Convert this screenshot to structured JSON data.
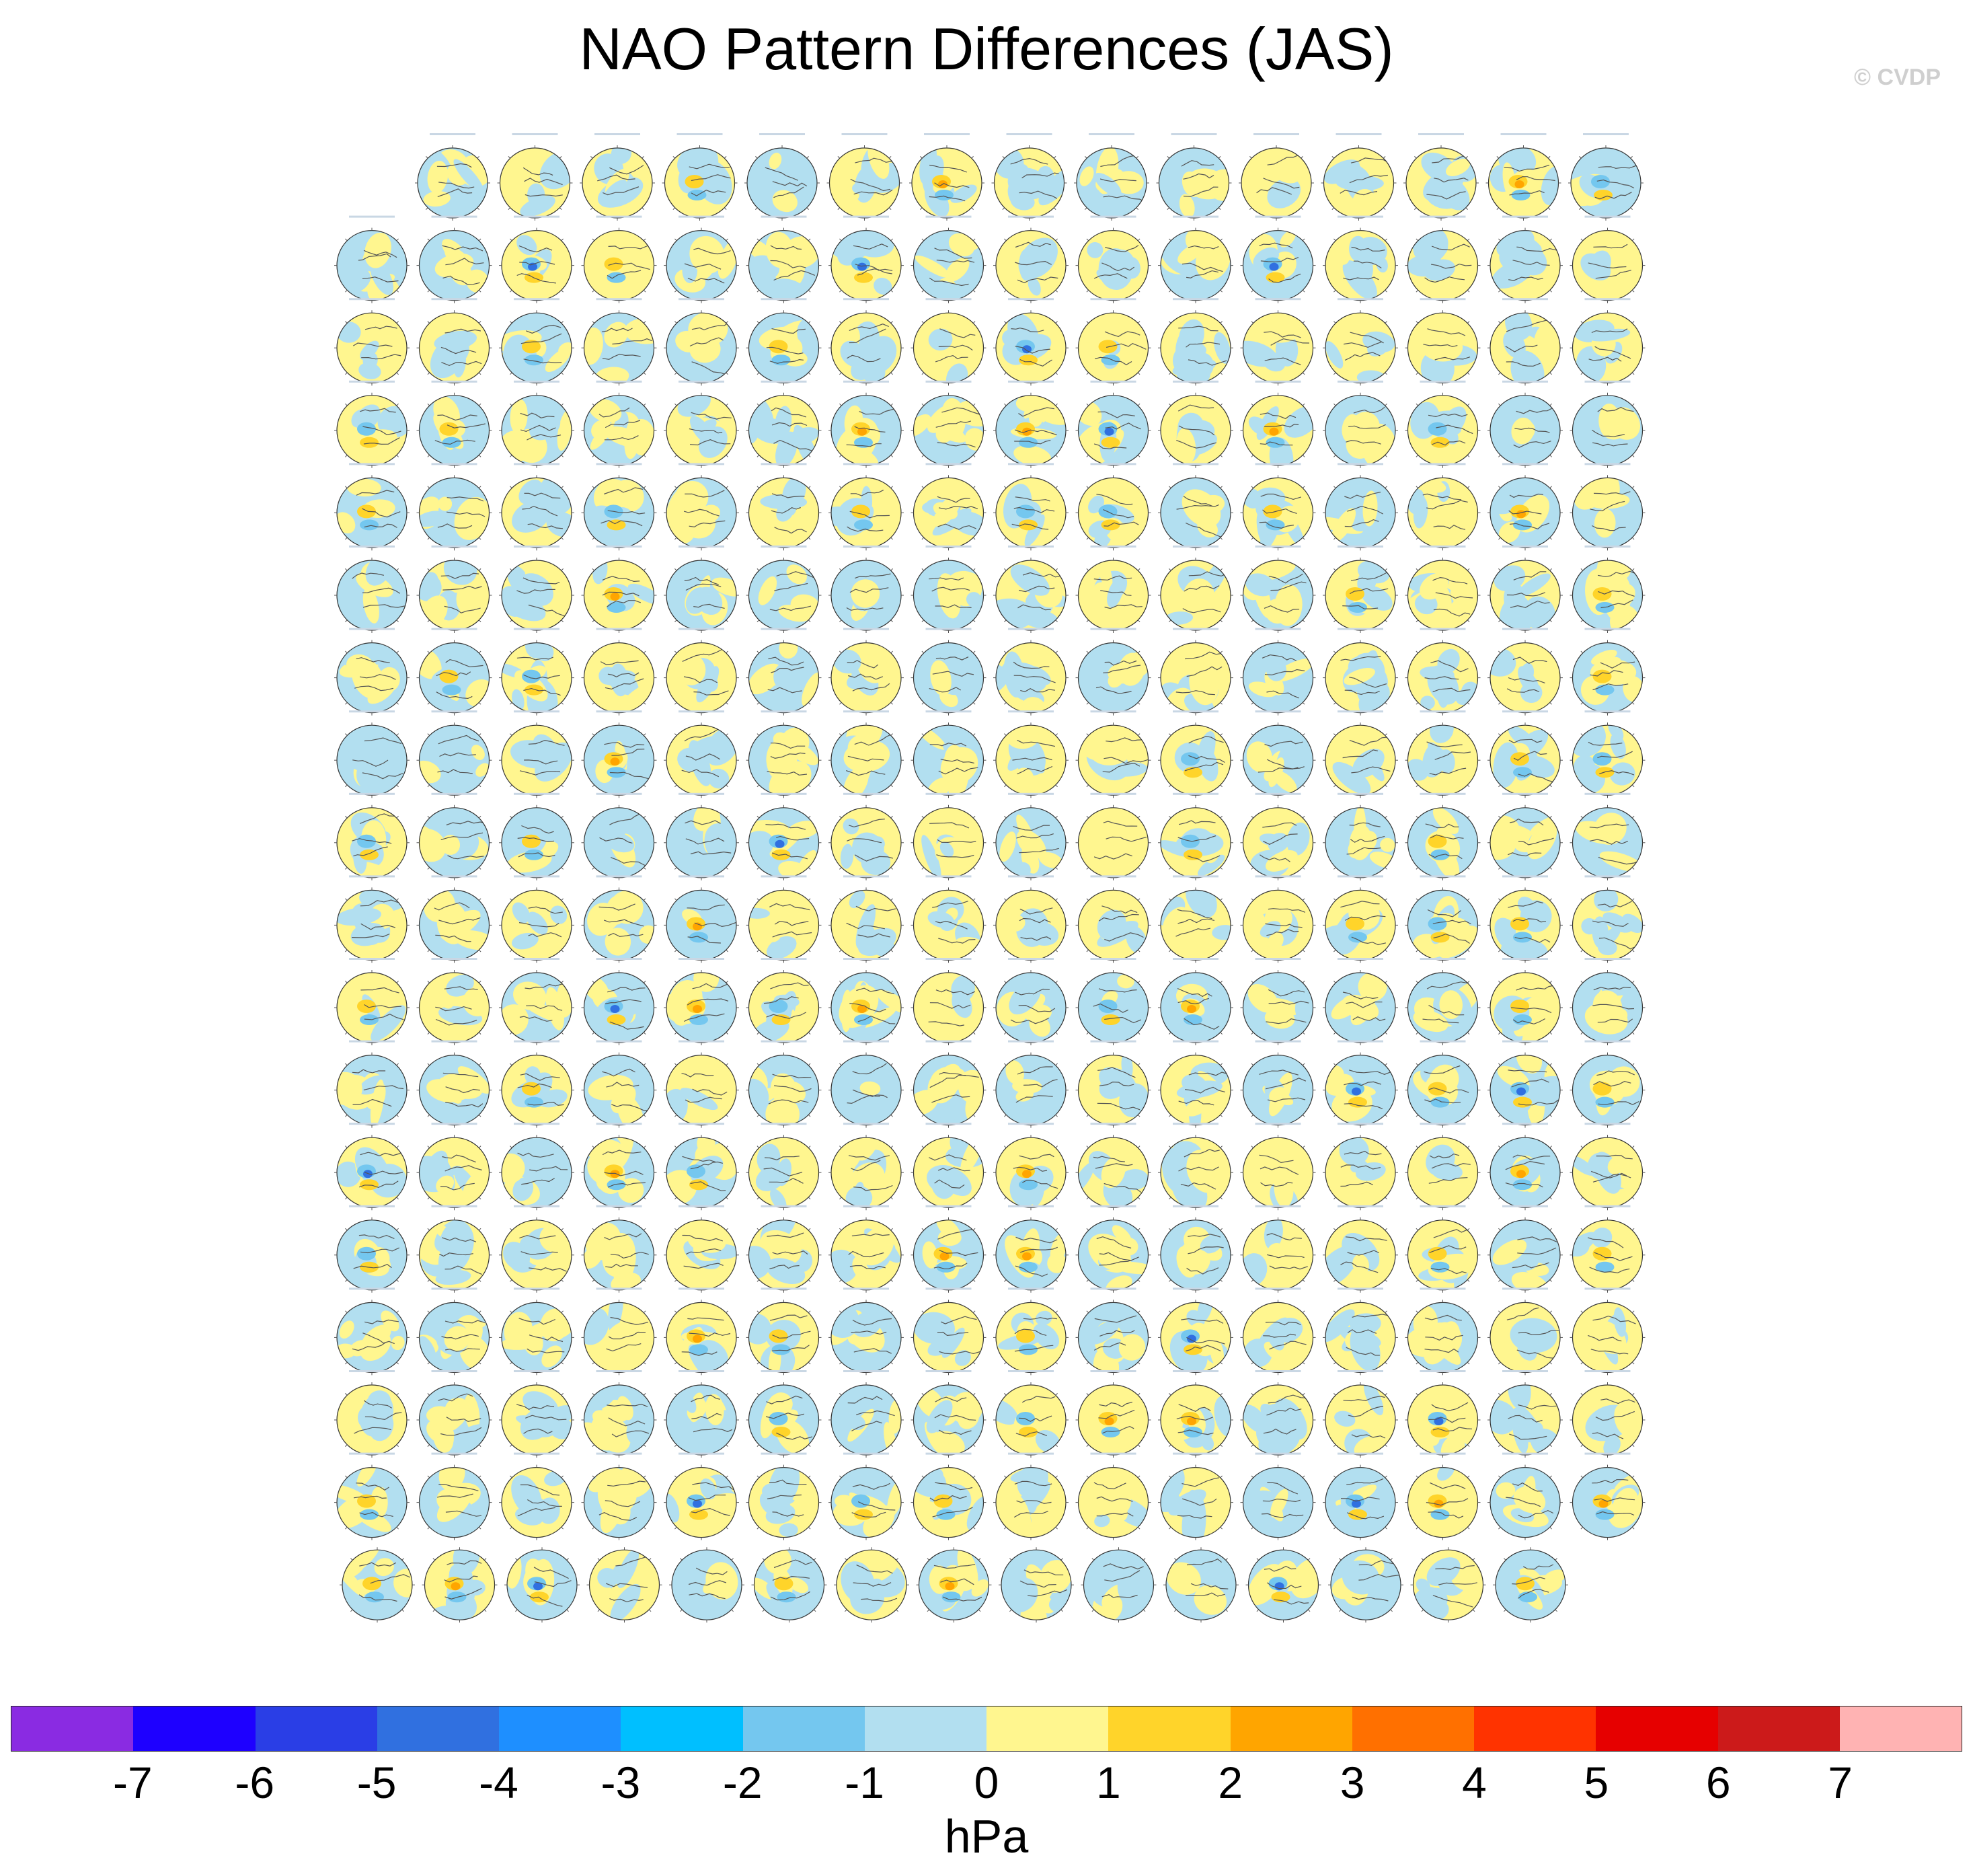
{
  "title": "NAO Pattern Differences (JAS)",
  "copyright": "© CVDP",
  "chart_data": {
    "type": "panel-grid of polar stereographic maps",
    "variable": "NAO pattern difference",
    "season": "JAS",
    "units": "hPa",
    "layout": {
      "rows": 18,
      "panels_per_row": [
        15,
        16,
        16,
        16,
        16,
        16,
        16,
        16,
        16,
        16,
        16,
        16,
        16,
        16,
        16,
        16,
        16,
        15
      ]
    },
    "colorbar": {
      "levels": [
        -7,
        -6,
        -5,
        -4,
        -3,
        -2,
        -1,
        0,
        1,
        2,
        3,
        4,
        5,
        6,
        7
      ],
      "tick_labels": [
        "-7",
        "-6",
        "-5",
        "-4",
        "-3",
        "-2",
        "-1",
        "0",
        "1",
        "2",
        "3",
        "4",
        "5",
        "6",
        "7"
      ],
      "colors": [
        "#8a2be2",
        "#1e00ff",
        "#2a3ee6",
        "#3070e0",
        "#1e8fff",
        "#00bfff",
        "#74c7ef",
        "#b2dff0",
        "#fff68f",
        "#ffd42a",
        "#ffa500",
        "#ff7000",
        "#ff3300",
        "#e60000",
        "#cc1a1a",
        "#ffb3b3"
      ]
    },
    "panel_colors": {
      "positive_light": "#fff68f",
      "negative_light": "#b2dff0",
      "negative_mid": "#74c7ef",
      "positive_mid": "#ffd42a",
      "positive_strong": "#ffa500",
      "negative_strong": "#3070e0",
      "coastline": "#555555"
    }
  }
}
